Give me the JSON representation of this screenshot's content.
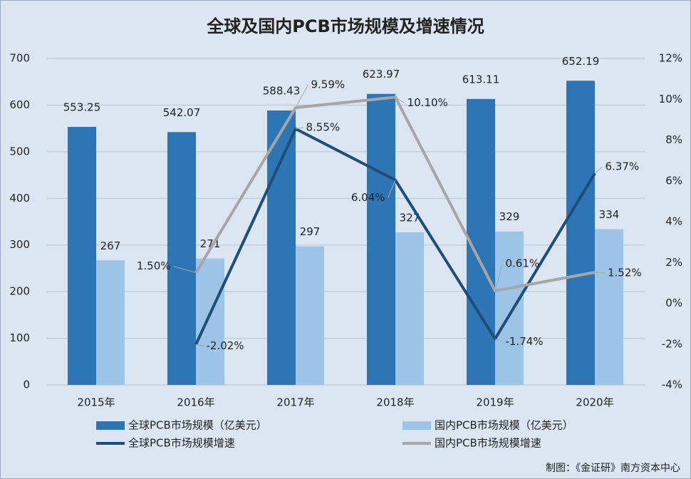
{
  "chart_data": {
    "type": "bar_line",
    "title": "全球及国内PCB市场规模及增速情况",
    "source": "制图：《金证研》南方资本中心",
    "categories": [
      "2015年",
      "2016年",
      "2017年",
      "2018年",
      "2019年",
      "2020年"
    ],
    "ylim": [
      0,
      700
    ],
    "yticks": [
      0,
      100,
      200,
      300,
      400,
      500,
      600,
      700
    ],
    "y2lim": [
      -4,
      12
    ],
    "y2ticks": [
      {
        "value": -4,
        "label": "-4%"
      },
      {
        "value": -2,
        "label": "-2%"
      },
      {
        "value": 0,
        "label": "0%"
      },
      {
        "value": 2,
        "label": "2%"
      },
      {
        "value": 4,
        "label": "4%"
      },
      {
        "value": 6,
        "label": "6%"
      },
      {
        "value": 8,
        "label": "8%"
      },
      {
        "value": 10,
        "label": "10%"
      },
      {
        "value": 12,
        "label": "12%"
      }
    ],
    "grid": true,
    "series": [
      {
        "name": "全球PCB市场规模（亿美元）",
        "kind": "bar",
        "color": "#2e75b6",
        "values": [
          553.25,
          542.07,
          588.43,
          623.97,
          613.11,
          652.19
        ]
      },
      {
        "name": "国内PCB市场规模（亿美元）",
        "kind": "bar",
        "color": "#9dc3e6",
        "values": [
          267,
          271,
          297,
          327,
          329,
          334
        ]
      },
      {
        "name": "全球PCB市场规模增速",
        "kind": "line",
        "axis": "y2",
        "color": "#1f4e79",
        "values": [
          null,
          -2.02,
          8.55,
          6.04,
          -1.74,
          6.37
        ],
        "value_labels": [
          null,
          "-2.02%",
          "8.55%",
          "6.04%",
          "-1.74%",
          "6.37%"
        ]
      },
      {
        "name": "国内PCB市场规模增速",
        "kind": "line",
        "axis": "y2",
        "color": "#a6a6a6",
        "values": [
          null,
          1.5,
          9.59,
          10.1,
          0.61,
          1.52
        ],
        "value_labels": [
          null,
          "1.50%",
          "9.59%",
          "10.10%",
          "0.61%",
          "1.52%"
        ]
      }
    ]
  }
}
